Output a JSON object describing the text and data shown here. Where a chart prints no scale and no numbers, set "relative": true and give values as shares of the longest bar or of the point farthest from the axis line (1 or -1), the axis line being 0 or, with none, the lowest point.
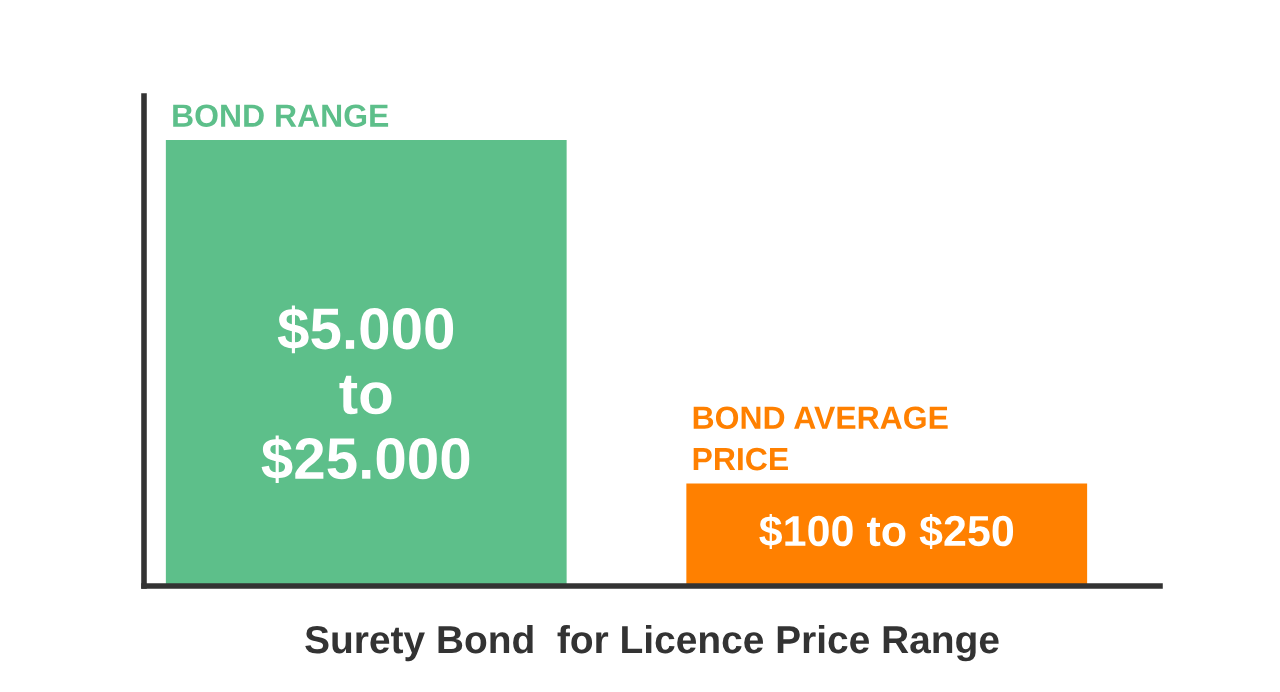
{
  "chart_data": {
    "type": "bar",
    "relative": true,
    "xlabel": "Surety Bond  for Licence Price Range",
    "categories": [
      "BOND RANGE",
      "BOND AVERAGE PRICE"
    ],
    "values": [
      1,
      0.23
    ],
    "colors": [
      "#5dbf8a",
      "#ff8000"
    ],
    "annotations": [
      "$5.000\nto\n$25.000",
      "$100 to $250"
    ],
    "grid": false,
    "legend": false
  }
}
